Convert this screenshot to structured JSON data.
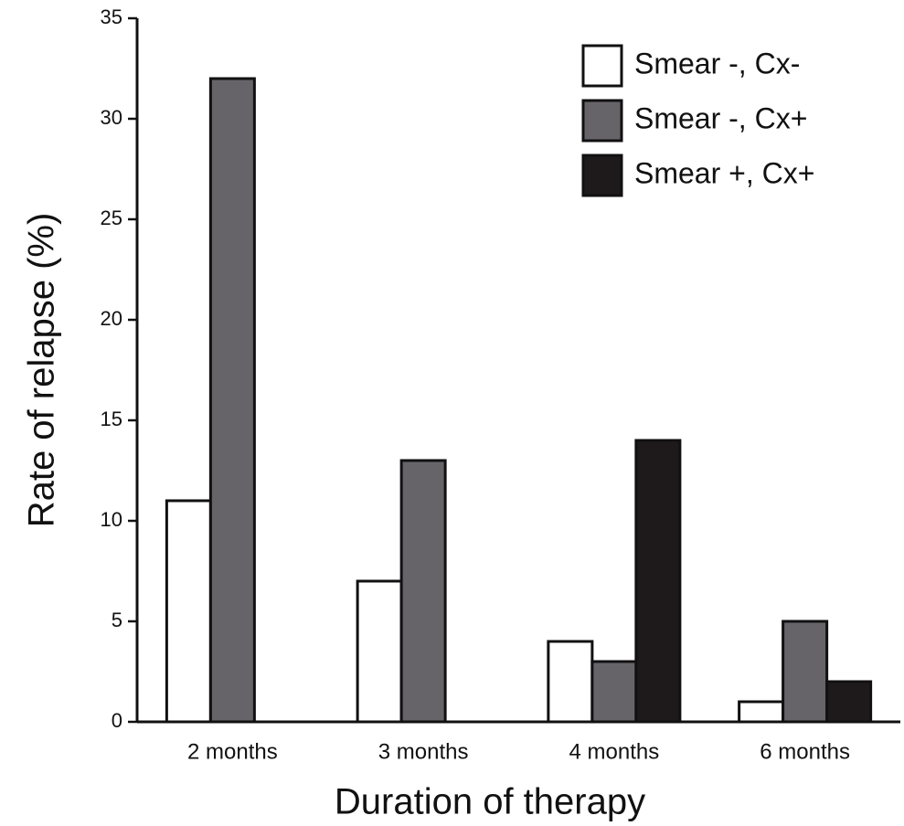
{
  "chart_data": {
    "type": "bar",
    "x_label": "Duration of therapy",
    "y_label": "Rate of relapse (%)",
    "categories": [
      "2 months",
      "3 months",
      "4 months",
      "6 months"
    ],
    "series": [
      {
        "name": "Smear -, Cx-",
        "color": "#ffffff",
        "values": [
          11,
          7,
          4,
          1
        ]
      },
      {
        "name": "Smear -, Cx+",
        "color": "#666469",
        "values": [
          32,
          13,
          3,
          5
        ]
      },
      {
        "name": "Smear +, Cx+",
        "color": "#1e1a1c",
        "values": [
          null,
          null,
          14,
          2
        ]
      }
    ],
    "ylim": [
      0,
      35
    ],
    "yticks": [
      0,
      5,
      10,
      15,
      20,
      25,
      30,
      35
    ],
    "legend": "upper right",
    "grid": false
  }
}
